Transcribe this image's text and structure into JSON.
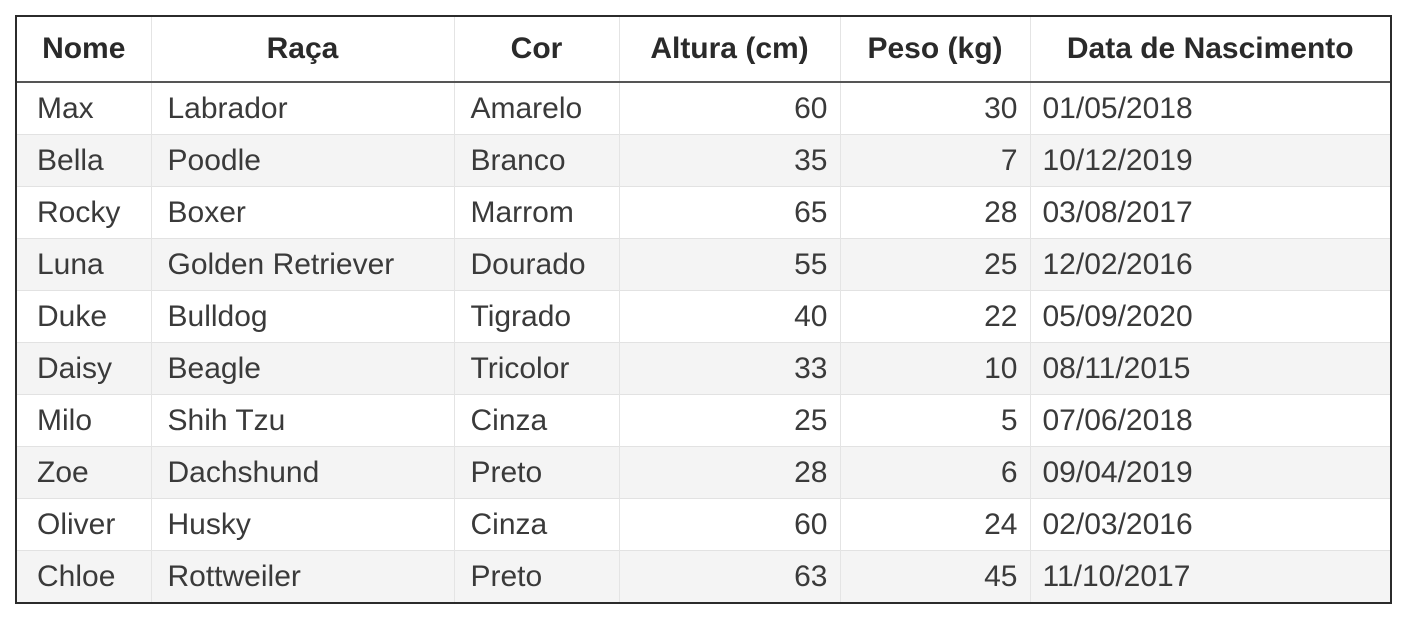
{
  "table": {
    "headers": [
      "Nome",
      "Raça",
      "Cor",
      "Altura (cm)",
      "Peso (kg)",
      "Data de Nascimento"
    ],
    "rows": [
      [
        "Max",
        "Labrador",
        "Amarelo",
        "60",
        "30",
        "01/05/2018"
      ],
      [
        "Bella",
        "Poodle",
        "Branco",
        "35",
        "7",
        "10/12/2019"
      ],
      [
        "Rocky",
        "Boxer",
        "Marrom",
        "65",
        "28",
        "03/08/2017"
      ],
      [
        "Luna",
        "Golden Retriever",
        "Dourado",
        "55",
        "25",
        "12/02/2016"
      ],
      [
        "Duke",
        "Bulldog",
        "Tigrado",
        "40",
        "22",
        "05/09/2020"
      ],
      [
        "Daisy",
        "Beagle",
        "Tricolor",
        "33",
        "10",
        "08/11/2015"
      ],
      [
        "Milo",
        "Shih Tzu",
        "Cinza",
        "25",
        "5",
        "07/06/2018"
      ],
      [
        "Zoe",
        "Dachshund",
        "Preto",
        "28",
        "6",
        "09/04/2019"
      ],
      [
        "Oliver",
        "Husky",
        "Cinza",
        "60",
        "24",
        "02/03/2016"
      ],
      [
        "Chloe",
        "Rottweiler",
        "Preto",
        "63",
        "45",
        "11/10/2017"
      ]
    ]
  }
}
